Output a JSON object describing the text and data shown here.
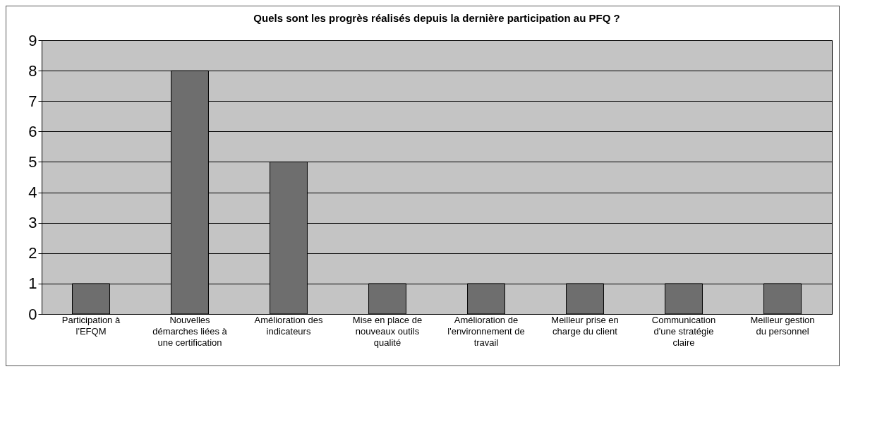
{
  "chart_data": {
    "type": "bar",
    "title": "Quels sont les progrès réalisés depuis la dernière participation au PFQ ?",
    "categories": [
      "Participation à l'EFQM",
      "Nouvelles démarches liées à une certification",
      "Amélioration des indicateurs",
      "Mise en place de nouveaux outils qualité",
      "Amélioration de l'environnement de travail",
      "Meilleur prise en charge du client",
      "Communication d'une stratégie claire",
      "Meilleur gestion du personnel"
    ],
    "values": [
      1,
      8,
      5,
      1,
      1,
      1,
      1,
      1
    ],
    "color": "#6e6e6e",
    "ylim": [
      0,
      9
    ],
    "yticks": [
      0,
      1,
      2,
      3,
      4,
      5,
      6,
      7,
      8,
      9
    ],
    "grid": "y"
  }
}
